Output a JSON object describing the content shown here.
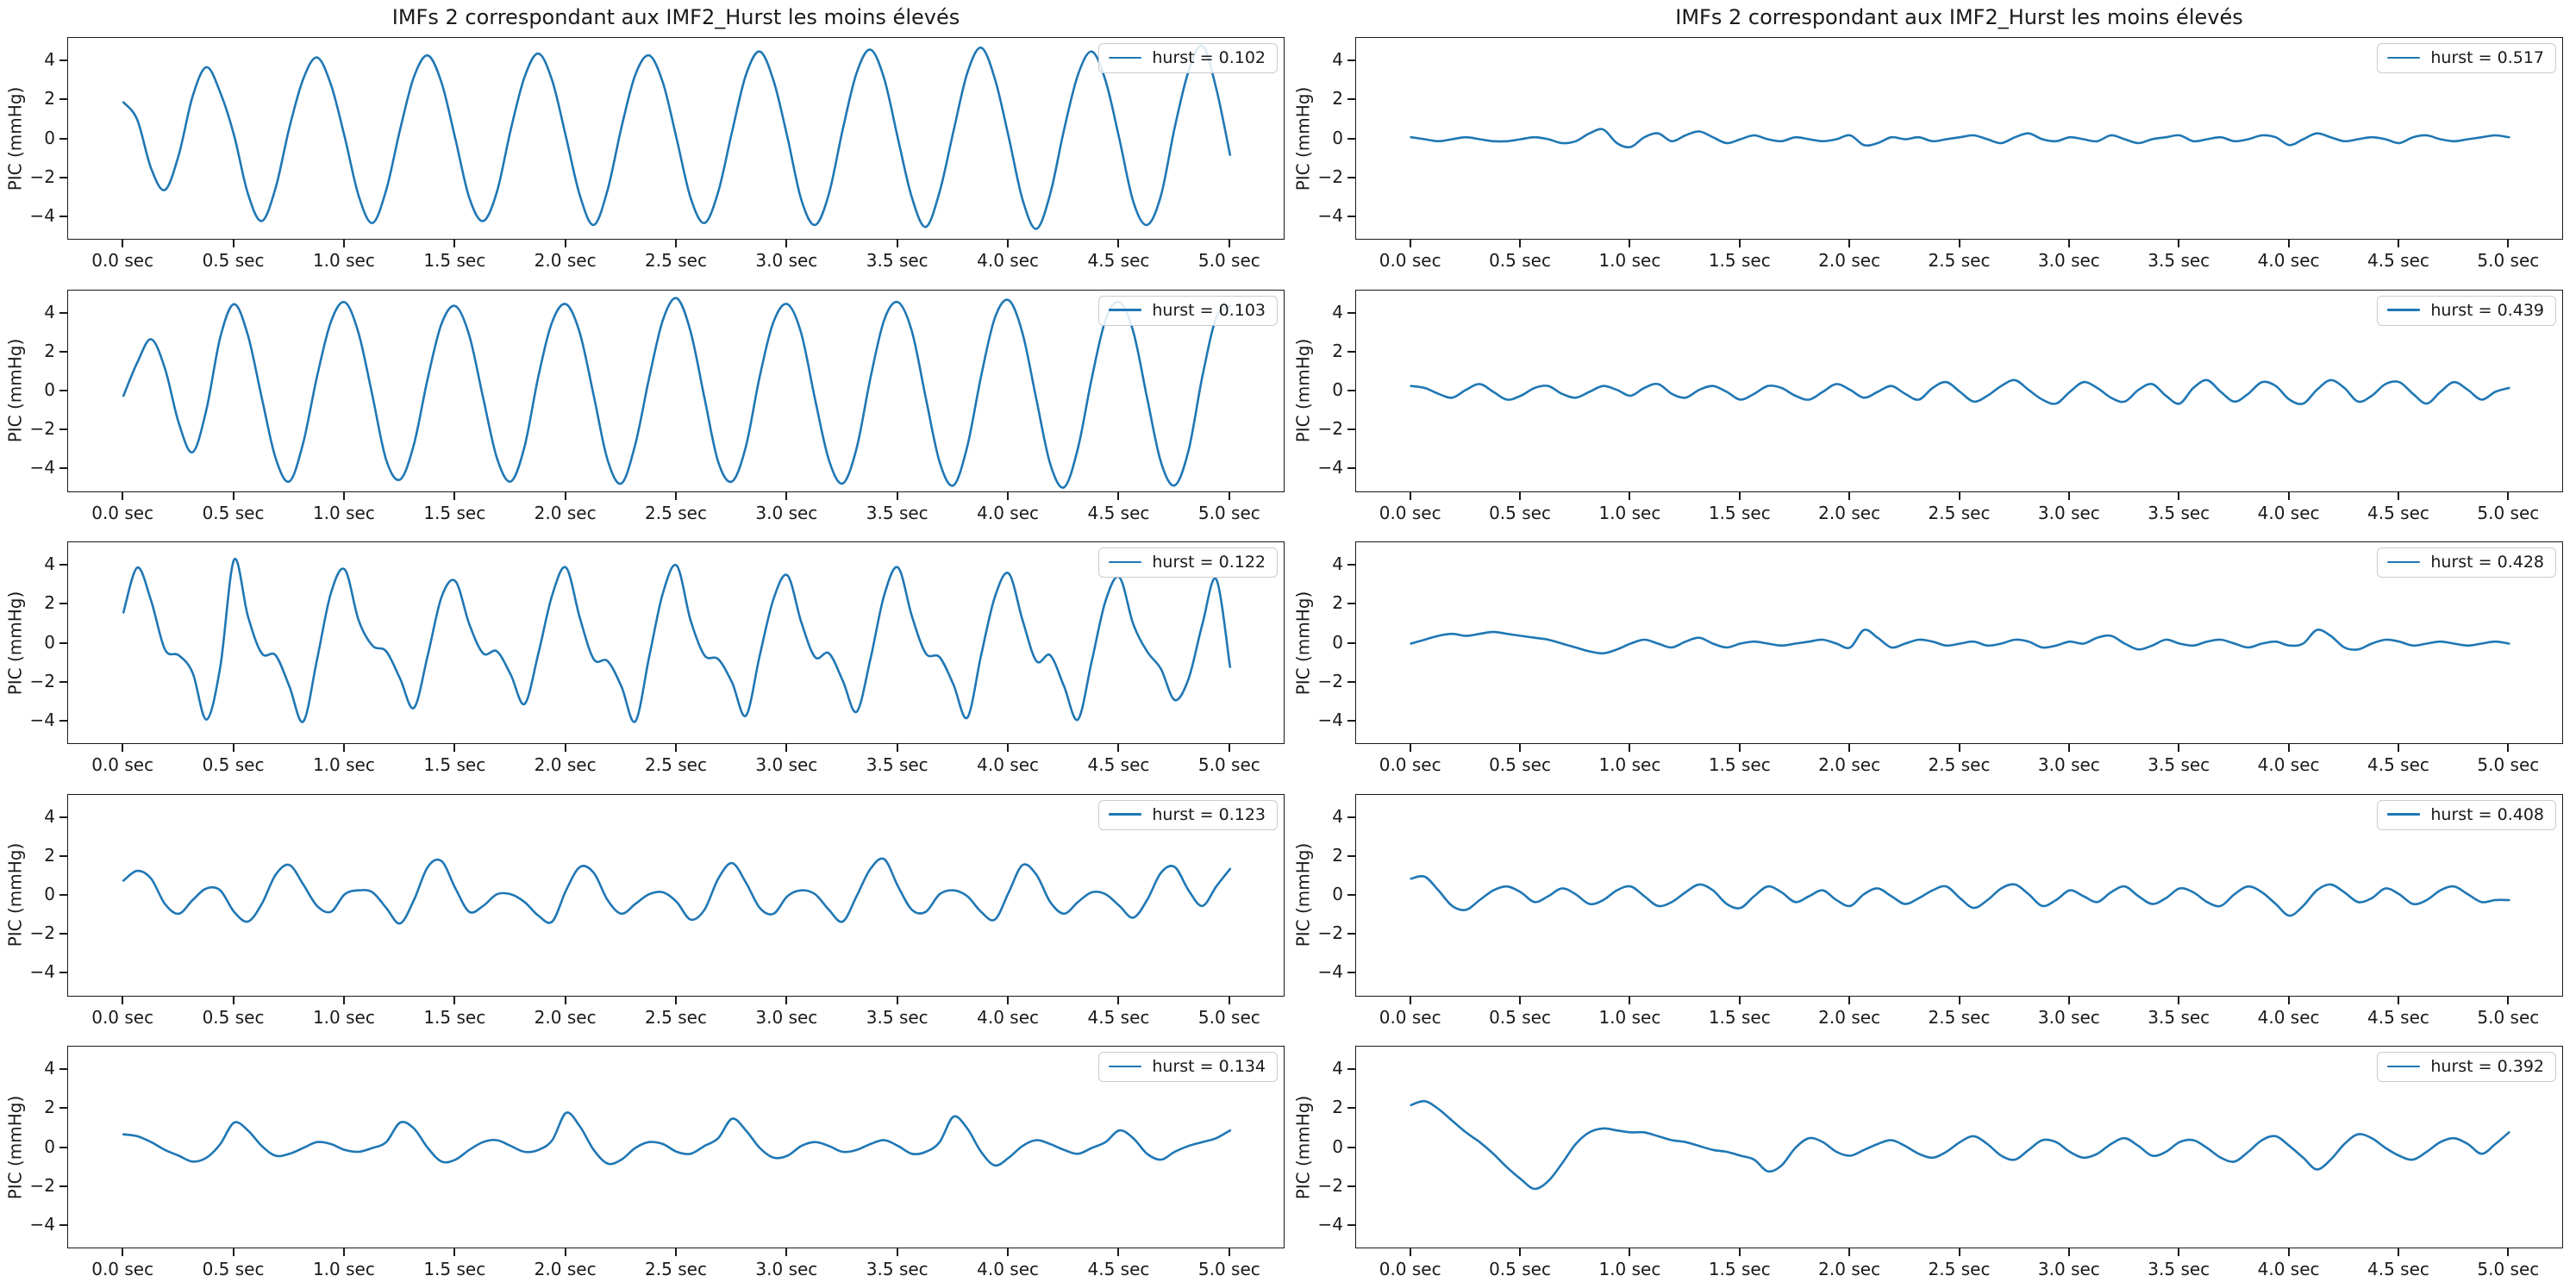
{
  "figure": {
    "background": "#ffffff",
    "line_color": "#1f77b4",
    "text_color": "#1a1a1a",
    "ylabel": "PIC (mmHg)",
    "xlim": [
      -0.25,
      5.25
    ],
    "ylim": [
      -5.2,
      5.2
    ],
    "x_ticks": {
      "values": [
        0,
        0.5,
        1,
        1.5,
        2,
        2.5,
        3,
        3.5,
        4,
        4.5,
        5
      ],
      "labels": [
        "0.0 sec",
        "0.5 sec",
        "1.0 sec",
        "1.5 sec",
        "2.0 sec",
        "2.5 sec",
        "3.0 sec",
        "3.5 sec",
        "4.0 sec",
        "4.5 sec",
        "5.0 sec"
      ]
    },
    "y_ticks": {
      "values": [
        4,
        2,
        0,
        -2,
        -4
      ],
      "labels": [
        "4",
        "2",
        "0",
        "−2",
        "−4"
      ]
    }
  },
  "chart_data": {
    "type": "line",
    "grid": "5 rows x 2 columns of subplots",
    "column_titles": [
      "IMFs 2 correspondant aux IMF2_Hurst les moins élevés",
      "IMFs 2 correspondant aux IMF2_Hurst les moins élevés"
    ],
    "ylabel": "PIC (mmHg)",
    "x_unit": "sec",
    "x_start": 0,
    "sample_interval_sec": 0.0625,
    "legend_position": "upper right",
    "charts": [
      {
        "row": 0,
        "col": 0,
        "hurst": 0.102,
        "legend": "hurst = 0.102",
        "values": [
          1.9,
          1.0,
          -1.5,
          -2.6,
          -0.8,
          2.2,
          3.7,
          2.4,
          0.2,
          -2.8,
          -4.2,
          -2.5,
          0.6,
          3.1,
          4.2,
          2.8,
          0.1,
          -2.9,
          -4.3,
          -2.6,
          0.5,
          3.2,
          4.3,
          2.9,
          0.0,
          -3.0,
          -4.2,
          -2.7,
          0.5,
          3.2,
          4.4,
          3.0,
          0.1,
          -2.9,
          -4.4,
          -2.6,
          0.6,
          3.3,
          4.3,
          2.9,
          0.0,
          -3.0,
          -4.3,
          -2.7,
          0.4,
          3.3,
          4.5,
          3.0,
          0.1,
          -3.1,
          -4.4,
          -2.8,
          0.5,
          3.4,
          4.6,
          3.1,
          0.0,
          -3.0,
          -4.5,
          -2.7,
          0.4,
          3.4,
          4.7,
          3.1,
          0.1,
          -3.1,
          -4.6,
          -2.8,
          0.5,
          3.3,
          4.5,
          3.0,
          0.0,
          -3.2,
          -4.4,
          -2.9,
          0.6,
          3.5,
          4.8,
          2.6,
          -0.8
        ]
      },
      {
        "row": 1,
        "col": 0,
        "hurst": 0.103,
        "legend": "hurst = 0.103",
        "values": [
          -0.2,
          1.5,
          2.7,
          1.2,
          -1.6,
          -3.1,
          -0.9,
          2.8,
          4.5,
          2.9,
          -0.3,
          -3.4,
          -4.6,
          -2.6,
          0.8,
          3.6,
          4.6,
          3.0,
          -0.2,
          -3.5,
          -4.5,
          -2.7,
          0.7,
          3.5,
          4.4,
          2.9,
          -0.3,
          -3.4,
          -4.6,
          -2.8,
          0.8,
          3.6,
          4.5,
          3.0,
          -0.2,
          -3.5,
          -4.7,
          -2.7,
          0.7,
          3.7,
          4.8,
          3.1,
          -0.3,
          -3.6,
          -4.6,
          -2.8,
          0.8,
          3.6,
          4.5,
          3.0,
          -0.4,
          -3.5,
          -4.7,
          -2.9,
          0.7,
          3.7,
          4.6,
          3.1,
          -0.3,
          -3.6,
          -4.8,
          -2.8,
          0.8,
          3.8,
          4.7,
          3.0,
          -0.4,
          -3.7,
          -4.9,
          -2.9,
          0.7,
          3.7,
          4.6,
          3.1,
          -0.3,
          -3.6,
          -4.8,
          -3.0,
          0.8,
          3.8,
          4.4
        ]
      },
      {
        "row": 2,
        "col": 0,
        "hurst": 0.122,
        "legend": "hurst = 0.122",
        "values": [
          1.6,
          3.9,
          2.2,
          -0.3,
          -0.6,
          -1.5,
          -3.9,
          -1.2,
          4.3,
          1.4,
          -0.5,
          -0.6,
          -2.2,
          -4.0,
          -0.8,
          2.6,
          3.8,
          1.2,
          -0.1,
          -0.4,
          -1.8,
          -3.3,
          -0.6,
          2.4,
          3.2,
          1.0,
          -0.5,
          -0.4,
          -1.6,
          -3.1,
          -0.5,
          2.5,
          3.9,
          1.3,
          -0.8,
          -0.9,
          -2.2,
          -4.0,
          -0.7,
          2.6,
          4.0,
          1.2,
          -0.6,
          -0.8,
          -2.0,
          -3.7,
          -0.6,
          2.3,
          3.5,
          1.1,
          -0.7,
          -0.5,
          -1.9,
          -3.5,
          -0.8,
          2.5,
          3.9,
          1.4,
          -0.5,
          -0.7,
          -2.1,
          -3.8,
          -0.6,
          2.4,
          3.6,
          1.2,
          -0.9,
          -0.6,
          -2.2,
          -3.9,
          -0.9,
          2.2,
          3.4,
          1.0,
          -0.4,
          -1.3,
          -2.9,
          -1.8,
          1.0,
          3.3,
          -1.2
        ]
      },
      {
        "row": 3,
        "col": 0,
        "hurst": 0.123,
        "legend": "hurst = 0.123",
        "values": [
          0.8,
          1.3,
          0.9,
          -0.4,
          -0.9,
          -0.2,
          0.4,
          0.3,
          -0.8,
          -1.3,
          -0.4,
          1.1,
          1.6,
          0.6,
          -0.5,
          -0.8,
          0.1,
          0.3,
          0.2,
          -0.6,
          -1.4,
          -0.2,
          1.5,
          1.8,
          0.4,
          -0.8,
          -0.5,
          0.1,
          0.1,
          -0.3,
          -1.0,
          -1.3,
          0.3,
          1.5,
          1.2,
          -0.2,
          -0.9,
          -0.4,
          0.1,
          0.2,
          -0.3,
          -1.2,
          -0.7,
          0.9,
          1.7,
          0.7,
          -0.6,
          -0.9,
          0.0,
          0.3,
          0.1,
          -0.7,
          -1.3,
          0.0,
          1.4,
          1.9,
          0.5,
          -0.7,
          -0.8,
          0.1,
          0.3,
          0.0,
          -0.8,
          -1.2,
          0.2,
          1.6,
          1.1,
          -0.3,
          -0.9,
          -0.3,
          0.2,
          0.1,
          -0.5,
          -1.1,
          -0.2,
          1.2,
          1.5,
          0.3,
          -0.5,
          0.5,
          1.4
        ]
      },
      {
        "row": 4,
        "col": 0,
        "hurst": 0.134,
        "legend": "hurst = 0.134",
        "values": [
          0.7,
          0.6,
          0.3,
          -0.1,
          -0.4,
          -0.7,
          -0.5,
          0.2,
          1.3,
          0.9,
          0.1,
          -0.4,
          -0.3,
          0.0,
          0.3,
          0.2,
          -0.1,
          -0.2,
          0.0,
          0.3,
          1.3,
          1.0,
          0.0,
          -0.7,
          -0.6,
          -0.1,
          0.3,
          0.4,
          0.1,
          -0.2,
          -0.1,
          0.4,
          1.8,
          1.1,
          -0.1,
          -0.8,
          -0.6,
          0.0,
          0.3,
          0.2,
          -0.2,
          -0.3,
          0.1,
          0.5,
          1.5,
          0.9,
          0.0,
          -0.5,
          -0.4,
          0.1,
          0.3,
          0.1,
          -0.2,
          -0.1,
          0.2,
          0.4,
          0.1,
          -0.3,
          -0.2,
          0.3,
          1.6,
          1.0,
          -0.2,
          -0.9,
          -0.5,
          0.1,
          0.4,
          0.2,
          -0.1,
          -0.3,
          0.0,
          0.3,
          0.9,
          0.5,
          -0.3,
          -0.6,
          -0.2,
          0.1,
          0.3,
          0.5,
          0.9
        ]
      },
      {
        "row": 0,
        "col": 1,
        "hurst": 0.517,
        "legend": "hurst = 0.517",
        "values": [
          0.1,
          0.0,
          -0.1,
          0.0,
          0.1,
          0.0,
          -0.1,
          -0.1,
          0.0,
          0.1,
          0.0,
          -0.2,
          -0.1,
          0.3,
          0.5,
          -0.2,
          -0.4,
          0.1,
          0.3,
          -0.1,
          0.2,
          0.4,
          0.1,
          -0.2,
          0.0,
          0.2,
          0.0,
          -0.1,
          0.1,
          0.0,
          -0.1,
          0.0,
          0.2,
          -0.3,
          -0.2,
          0.1,
          0.0,
          0.1,
          -0.1,
          0.0,
          0.1,
          0.2,
          0.0,
          -0.2,
          0.1,
          0.3,
          0.0,
          -0.1,
          0.1,
          0.0,
          -0.1,
          0.2,
          0.0,
          -0.2,
          0.0,
          0.1,
          0.2,
          -0.1,
          0.0,
          0.1,
          -0.1,
          0.0,
          0.2,
          0.1,
          -0.3,
          0.0,
          0.3,
          0.1,
          -0.1,
          0.0,
          0.1,
          0.0,
          -0.2,
          0.1,
          0.2,
          0.0,
          -0.1,
          0.0,
          0.1,
          0.2,
          0.1
        ]
      },
      {
        "row": 1,
        "col": 1,
        "hurst": 0.439,
        "legend": "hurst = 0.439",
        "values": [
          0.3,
          0.2,
          -0.1,
          -0.3,
          0.1,
          0.4,
          0.0,
          -0.4,
          -0.2,
          0.2,
          0.3,
          -0.1,
          -0.3,
          0.0,
          0.3,
          0.1,
          -0.2,
          0.2,
          0.4,
          -0.1,
          -0.3,
          0.1,
          0.3,
          0.0,
          -0.4,
          -0.1,
          0.3,
          0.2,
          -0.2,
          -0.4,
          0.0,
          0.4,
          0.1,
          -0.3,
          0.0,
          0.3,
          -0.1,
          -0.4,
          0.2,
          0.5,
          0.0,
          -0.5,
          -0.2,
          0.3,
          0.6,
          0.1,
          -0.4,
          -0.6,
          0.0,
          0.5,
          0.2,
          -0.3,
          -0.5,
          0.1,
          0.4,
          -0.2,
          -0.6,
          0.2,
          0.6,
          0.0,
          -0.5,
          -0.1,
          0.5,
          0.3,
          -0.4,
          -0.6,
          0.1,
          0.6,
          0.2,
          -0.5,
          -0.2,
          0.4,
          0.5,
          -0.1,
          -0.6,
          0.0,
          0.5,
          0.1,
          -0.4,
          0.0,
          0.2
        ]
      },
      {
        "row": 2,
        "col": 1,
        "hurst": 0.428,
        "legend": "hurst = 0.428",
        "values": [
          0.0,
          0.2,
          0.4,
          0.5,
          0.4,
          0.5,
          0.6,
          0.5,
          0.4,
          0.3,
          0.2,
          0.0,
          -0.2,
          -0.4,
          -0.5,
          -0.3,
          0.0,
          0.2,
          0.0,
          -0.2,
          0.1,
          0.3,
          0.0,
          -0.2,
          0.0,
          0.1,
          0.0,
          -0.1,
          0.0,
          0.1,
          0.2,
          0.0,
          -0.2,
          0.7,
          0.3,
          -0.2,
          0.0,
          0.2,
          0.1,
          -0.1,
          0.0,
          0.1,
          -0.1,
          0.0,
          0.2,
          0.1,
          -0.2,
          -0.1,
          0.1,
          0.0,
          0.3,
          0.4,
          0.0,
          -0.3,
          -0.1,
          0.2,
          0.0,
          -0.1,
          0.1,
          0.2,
          0.0,
          -0.2,
          0.0,
          0.1,
          -0.1,
          0.0,
          0.7,
          0.4,
          -0.2,
          -0.3,
          0.0,
          0.2,
          0.1,
          -0.1,
          0.0,
          0.1,
          0.0,
          -0.1,
          0.0,
          0.1,
          0.0
        ]
      },
      {
        "row": 3,
        "col": 1,
        "hurst": 0.408,
        "legend": "hurst = 0.408",
        "values": [
          0.9,
          1.0,
          0.3,
          -0.5,
          -0.7,
          -0.2,
          0.3,
          0.5,
          0.2,
          -0.3,
          0.0,
          0.4,
          0.1,
          -0.4,
          -0.2,
          0.3,
          0.5,
          0.0,
          -0.5,
          -0.3,
          0.2,
          0.6,
          0.3,
          -0.4,
          -0.6,
          0.0,
          0.5,
          0.2,
          -0.3,
          0.0,
          0.3,
          -0.2,
          -0.5,
          0.1,
          0.4,
          0.0,
          -0.4,
          -0.1,
          0.3,
          0.5,
          -0.1,
          -0.6,
          -0.2,
          0.4,
          0.6,
          0.1,
          -0.5,
          -0.2,
          0.3,
          0.0,
          -0.3,
          0.2,
          0.5,
          0.0,
          -0.4,
          -0.1,
          0.4,
          0.2,
          -0.3,
          -0.5,
          0.1,
          0.5,
          0.2,
          -0.4,
          -1.0,
          -0.5,
          0.3,
          0.6,
          0.2,
          -0.3,
          -0.1,
          0.4,
          0.1,
          -0.4,
          -0.2,
          0.3,
          0.5,
          0.1,
          -0.3,
          -0.2,
          -0.2
        ]
      },
      {
        "row": 4,
        "col": 1,
        "hurst": 0.392,
        "legend": "hurst = 0.392",
        "values": [
          2.2,
          2.4,
          2.0,
          1.4,
          0.8,
          0.3,
          -0.3,
          -1.0,
          -1.6,
          -2.1,
          -1.7,
          -0.8,
          0.2,
          0.8,
          1.0,
          0.9,
          0.8,
          0.8,
          0.6,
          0.4,
          0.3,
          0.1,
          -0.1,
          -0.2,
          -0.4,
          -0.6,
          -1.2,
          -0.9,
          0.0,
          0.5,
          0.3,
          -0.2,
          -0.4,
          -0.1,
          0.2,
          0.4,
          0.1,
          -0.3,
          -0.5,
          -0.2,
          0.3,
          0.6,
          0.2,
          -0.4,
          -0.6,
          -0.1,
          0.4,
          0.3,
          -0.2,
          -0.5,
          -0.3,
          0.2,
          0.5,
          0.1,
          -0.4,
          -0.2,
          0.3,
          0.4,
          0.0,
          -0.5,
          -0.7,
          -0.2,
          0.4,
          0.6,
          0.1,
          -0.5,
          -1.1,
          -0.6,
          0.2,
          0.7,
          0.5,
          0.0,
          -0.4,
          -0.6,
          -0.2,
          0.3,
          0.5,
          0.2,
          -0.3,
          0.2,
          0.8
        ]
      }
    ]
  }
}
